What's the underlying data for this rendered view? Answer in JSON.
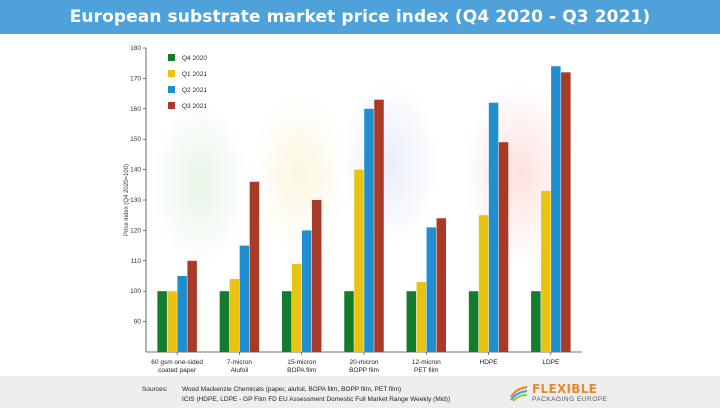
{
  "title": "European substrate market price index (Q4 2020 - Q3 2021)",
  "chart_data": {
    "type": "bar",
    "ylabel": "Price index (Q4 2020=100)",
    "ylim": [
      80,
      180
    ],
    "yticks": [
      90,
      100,
      110,
      120,
      130,
      140,
      150,
      160,
      170,
      180
    ],
    "grid": false,
    "legend_position": "top-left",
    "categories": [
      [
        "60 gsm one-sided",
        "coated paper"
      ],
      [
        "7-micron",
        "Alufoil"
      ],
      [
        "15-micron",
        "BOPA film"
      ],
      [
        "20-micron",
        "BOPP film"
      ],
      [
        "12-micron",
        "PET film"
      ],
      [
        "HDPE"
      ],
      [
        "LDPE"
      ]
    ],
    "series": [
      {
        "name": "Q4 2020",
        "color": "#137c2d",
        "values": [
          100,
          100,
          100,
          100,
          100,
          100,
          100
        ]
      },
      {
        "name": "Q1 2021",
        "color": "#e8c311",
        "values": [
          100,
          104,
          109,
          140,
          103,
          125,
          133
        ]
      },
      {
        "name": "Q2 2021",
        "color": "#1f8fd0",
        "values": [
          105,
          115,
          120,
          160,
          121,
          162,
          174
        ]
      },
      {
        "name": "Q3 2021",
        "color": "#a83a26",
        "values": [
          110,
          136,
          130,
          163,
          124,
          149,
          172
        ]
      }
    ]
  },
  "footer": {
    "sources_label": "Sources:",
    "source_1": "Wood Mackenzie Chemicals (paper, alufoil, BOPA film, BOPP film, PET film)",
    "source_2": "ICIS (HDPE, LDPE - GP Film FD EU Assessment Domestic Full Market Range Weekly (Mid))",
    "logo_line1": "FLEXIBLE",
    "logo_line2": "PACKAGING EUROPE"
  }
}
